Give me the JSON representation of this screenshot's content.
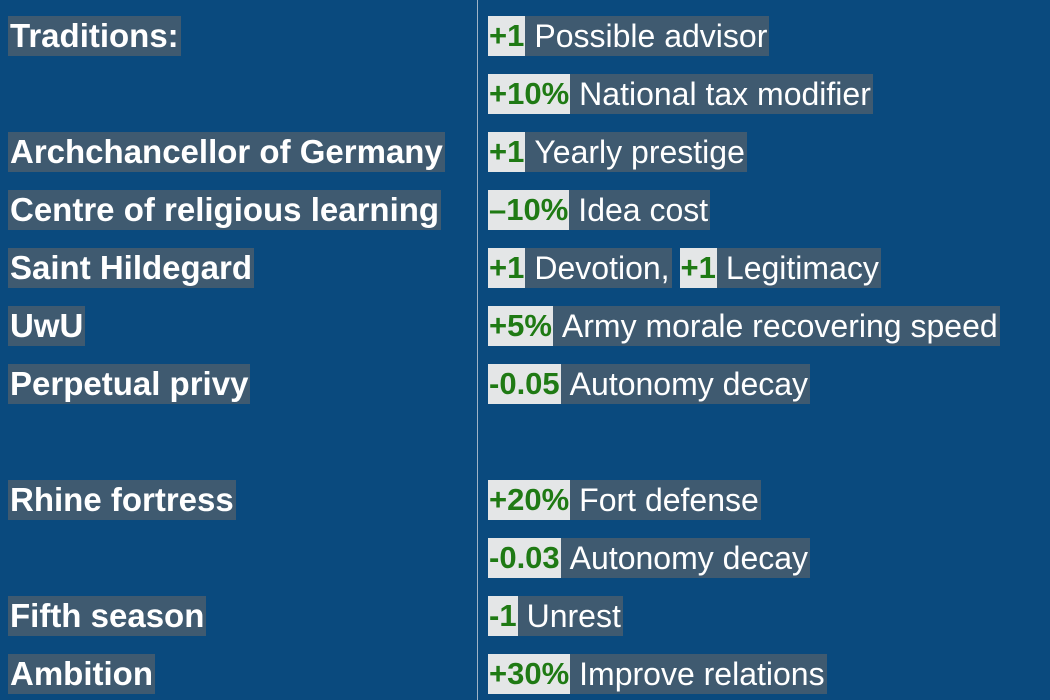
{
  "rows": [
    {
      "label": " Traditions:",
      "effects": [
        {
          "value": "+1",
          "text": "Possible advisor"
        }
      ]
    },
    {
      "label": "",
      "effects": [
        {
          "value": "+10%",
          "text": "National tax modifier"
        }
      ]
    },
    {
      "label": "Archchancellor of Germany",
      "effects": [
        {
          "value": "+1",
          "text": "Yearly prestige"
        }
      ]
    },
    {
      "label": "Centre of religious learning",
      "effects": [
        {
          "value": "–10%",
          "text": "Idea cost"
        }
      ]
    },
    {
      "label": "Saint Hildegard",
      "effects": [
        {
          "value": "+1",
          "text": "Devotion,"
        },
        {
          "value": "+1",
          "text": "Legitimacy"
        }
      ]
    },
    {
      "label": "UwU",
      "effects": [
        {
          "value": "+5%",
          "text": "Army morale recovering speed"
        }
      ]
    },
    {
      "label": "Perpetual privy",
      "effects": [
        {
          "value": "-0.05",
          "text": "Autonomy decay"
        }
      ]
    },
    {
      "label": "Rhine fortress",
      "effects": [
        {
          "value": "+20%",
          "text": "Fort defense"
        }
      ]
    },
    {
      "label": "",
      "effects": [
        {
          "value": "-0.03",
          "text": "Autonomy decay"
        }
      ]
    },
    {
      "label": "Fifth season",
      "effects": [
        {
          "value": "-1",
          "text": "Unrest"
        }
      ]
    },
    {
      "label": "Ambition",
      "effects": [
        {
          "value": "+30%",
          "text": "Improve relations"
        }
      ]
    }
  ]
}
